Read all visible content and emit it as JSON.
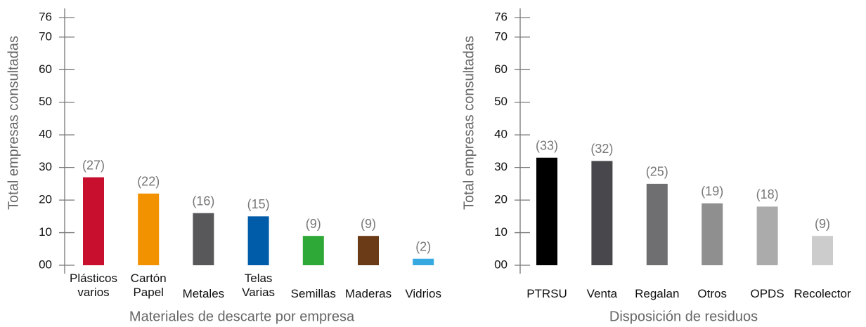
{
  "chart_data": [
    {
      "type": "bar",
      "y_label": "Total empresas consultadas",
      "x_label": "Materiales de descarte por empresa",
      "categories": [
        "Plásticos\nvarios",
        "Cartón\nPapel",
        "Metales",
        "Telas\nVarias",
        "Semillas",
        "Maderas",
        "Vidrios"
      ],
      "values": [
        27,
        22,
        16,
        15,
        9,
        9,
        2
      ],
      "value_labels": [
        "(27)",
        "(22)",
        "(16)",
        "(15)",
        "(9)",
        "(9)",
        "(2)"
      ],
      "colors": [
        "#c8102e",
        "#f39200",
        "#58585a",
        "#005ca9",
        "#2ea836",
        "#6b3a17",
        "#36a9e1"
      ],
      "ylim": [
        0,
        76
      ],
      "yticks": [
        {
          "value": 0,
          "label": "00"
        },
        10,
        20,
        30,
        40,
        50,
        60,
        70,
        76
      ]
    },
    {
      "type": "bar",
      "y_label": "Total empresas consultadas",
      "x_label": "Disposición de residuos",
      "categories": [
        "PTRSU",
        "Venta",
        "Regalan",
        "Otros",
        "OPDS",
        "Recolector"
      ],
      "values": [
        33,
        32,
        25,
        19,
        18,
        9
      ],
      "value_labels": [
        "(33)",
        "(32)",
        "(25)",
        "(19)",
        "(18)",
        "(9)"
      ],
      "colors": [
        "#000000",
        "#48484c",
        "#6f6f71",
        "#8f8f8f",
        "#ababab",
        "#cccccc"
      ],
      "ylim": [
        0,
        76
      ],
      "yticks": [
        {
          "value": 0,
          "label": "00"
        },
        10,
        20,
        30,
        40,
        50,
        60,
        70,
        76
      ]
    }
  ]
}
